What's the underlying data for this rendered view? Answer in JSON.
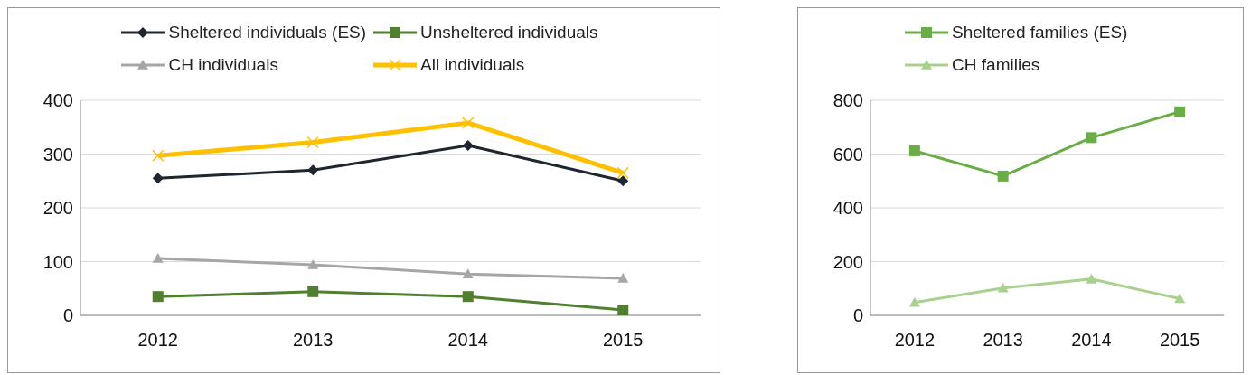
{
  "chart_data": [
    {
      "type": "line",
      "categories": [
        "2012",
        "2013",
        "2014",
        "2015"
      ],
      "ylim": [
        0,
        400
      ],
      "yticks": [
        0,
        100,
        200,
        300,
        400
      ],
      "grid": "y",
      "legend": "top",
      "series": [
        {
          "name": "Sheltered individuals (ES)",
          "color": "#1f2630",
          "marker": "diamond",
          "values": [
            255,
            270,
            316,
            250
          ]
        },
        {
          "name": "Unsheltered individuals",
          "color": "#4f7f2f",
          "marker": "square",
          "values": [
            35,
            44,
            35,
            10
          ]
        },
        {
          "name": "CH individuals",
          "color": "#a6a6a6",
          "marker": "triangle",
          "values": [
            106,
            94,
            77,
            69
          ]
        },
        {
          "name": "All individuals",
          "color": "#ffc000",
          "marker": "cross",
          "values": [
            297,
            322,
            358,
            265
          ]
        }
      ]
    },
    {
      "type": "line",
      "categories": [
        "2012",
        "2013",
        "2014",
        "2015"
      ],
      "ylim": [
        0,
        800
      ],
      "yticks": [
        0,
        200,
        400,
        600,
        800
      ],
      "grid": "y",
      "legend": "top",
      "series": [
        {
          "name": "Sheltered families (ES)",
          "color": "#6aac46",
          "marker": "square",
          "values": [
            612,
            518,
            661,
            757
          ]
        },
        {
          "name": "CH families",
          "color": "#a9d08e",
          "marker": "triangle",
          "values": [
            48,
            102,
            135,
            62
          ]
        }
      ]
    }
  ]
}
